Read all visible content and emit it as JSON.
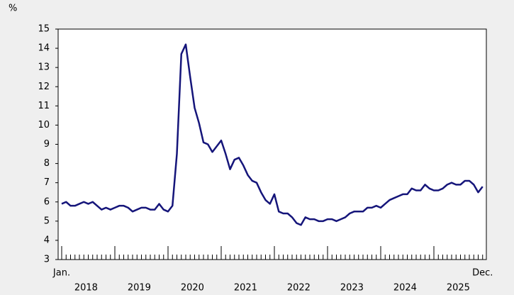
{
  "chart_data": {
    "type": "line",
    "y_label": "%",
    "categories": [
      "Jan.",
      null,
      null,
      null,
      null,
      null,
      null,
      null,
      null,
      null,
      null,
      null,
      null,
      null,
      null,
      null,
      null,
      null,
      null,
      null,
      null,
      null,
      null,
      null,
      null,
      null,
      null,
      null,
      null,
      null,
      null,
      null,
      null,
      null,
      null,
      null,
      null,
      null,
      null,
      null,
      null,
      null,
      null,
      null,
      null,
      null,
      null,
      null,
      null,
      null,
      null,
      null,
      null,
      null,
      null,
      null,
      null,
      null,
      null,
      null,
      null,
      null,
      null,
      null,
      null,
      null,
      null,
      null,
      null,
      null,
      null,
      null,
      null,
      null,
      null,
      null,
      null,
      null,
      null,
      null,
      null,
      null,
      null,
      null,
      null,
      null,
      null,
      null,
      null,
      null,
      null,
      null,
      null,
      null,
      null,
      "Dec."
    ],
    "years": [
      "2018",
      "2019",
      "2020",
      "2021",
      "2022",
      "2023",
      "2024",
      "2025"
    ],
    "series": [
      {
        "color": "#15157a",
        "values": [
          5.9,
          6.0,
          5.8,
          5.8,
          5.9,
          6.0,
          5.9,
          6.0,
          5.8,
          5.6,
          5.7,
          5.6,
          5.7,
          5.8,
          5.8,
          5.7,
          5.5,
          5.6,
          5.7,
          5.7,
          5.6,
          5.6,
          5.9,
          5.6,
          5.5,
          5.8,
          8.5,
          13.7,
          14.2,
          12.5,
          10.9,
          10.1,
          9.1,
          9.0,
          8.6,
          8.9,
          9.2,
          8.5,
          7.7,
          8.2,
          8.3,
          7.9,
          7.4,
          7.1,
          7.0,
          6.5,
          6.1,
          5.9,
          6.4,
          5.5,
          5.4,
          5.4,
          5.2,
          4.9,
          4.8,
          5.2,
          5.1,
          5.1,
          5.0,
          5.0,
          5.1,
          5.1,
          5.0,
          5.1,
          5.2,
          5.4,
          5.5,
          5.5,
          5.5,
          5.7,
          5.7,
          5.8,
          5.7,
          5.9,
          6.1,
          6.2,
          6.3,
          6.4,
          6.4,
          6.7,
          6.6,
          6.6,
          6.9,
          6.7,
          6.6,
          6.6,
          6.7,
          6.9,
          7.0,
          6.9,
          6.9,
          7.1,
          7.1,
          6.9,
          6.5,
          6.8
        ]
      }
    ],
    "ylim": [
      3,
      15
    ],
    "yticks": [
      3,
      4,
      5,
      6,
      7,
      8,
      9,
      10,
      11,
      12,
      13,
      14,
      15
    ],
    "grid": false
  }
}
